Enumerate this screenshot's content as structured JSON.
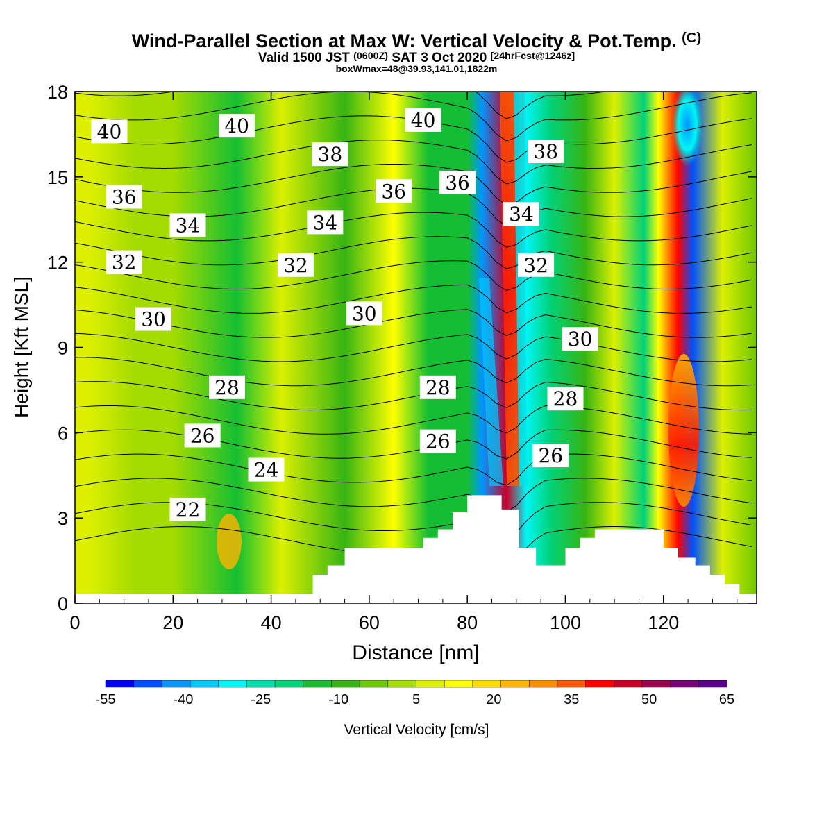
{
  "title": {
    "main": "Wind-Parallel Section at Max W: Vertical Velocity & Pot.Temp.",
    "main_mark": "(C)",
    "valid_prefix": "Valid 1500 JST",
    "valid_utc": "(0600Z)",
    "valid_date": "SAT 3 Oct 2020",
    "valid_fcst": "[24hrFcst@1246z]",
    "subtitle": "boxWmax=48@39.93,141.01,1822m"
  },
  "chart_data": {
    "type": "heatmap",
    "xlabel": "Distance [nm]",
    "ylabel": "Height [Kft MSL]",
    "xlim": [
      0,
      139
    ],
    "ylim": [
      0,
      18
    ],
    "x_ticks": [
      "0",
      "20",
      "40",
      "60",
      "80",
      "100",
      "120"
    ],
    "y_ticks": [
      "0",
      "3",
      "6",
      "9",
      "12",
      "15",
      "18"
    ],
    "colorbar": {
      "label": "Vertical Velocity [cm/s]",
      "tick_labels": [
        "-55",
        "-40",
        "-25",
        "-10",
        "5",
        "20",
        "35",
        "50",
        "65"
      ],
      "colors": [
        "#0000f5",
        "#0050ff",
        "#0096ff",
        "#00c8ff",
        "#00f5f5",
        "#00dcaa",
        "#00d278",
        "#14be32",
        "#37b414",
        "#6ec800",
        "#a5dc00",
        "#dcf000",
        "#ffff00",
        "#ffdc00",
        "#ffb400",
        "#ff8c00",
        "#ff5a00",
        "#ff0000",
        "#c80028",
        "#a00050",
        "#780078",
        "#5a008c"
      ]
    },
    "w_bands": [
      {
        "x": 3,
        "value": 5
      },
      {
        "x": 12,
        "value": 0
      },
      {
        "x": 20,
        "value": 2
      },
      {
        "x": 33,
        "value": -12
      },
      {
        "x": 42,
        "value": 8
      },
      {
        "x": 55,
        "value": -10
      },
      {
        "x": 65,
        "value": 15
      },
      {
        "x": 72,
        "value": -12
      },
      {
        "x": 80,
        "value": -15
      },
      {
        "x": 83,
        "value": -40
      },
      {
        "x": 88,
        "value": 45
      },
      {
        "x": 92,
        "value": -30
      },
      {
        "x": 97,
        "value": -20
      },
      {
        "x": 104,
        "value": -10
      },
      {
        "x": 110,
        "value": 10
      },
      {
        "x": 116,
        "value": -20
      },
      {
        "x": 119,
        "value": 15
      },
      {
        "x": 123,
        "value": 40
      },
      {
        "x": 126,
        "value": -45
      },
      {
        "x": 132,
        "value": 10
      },
      {
        "x": 139,
        "value": -5
      }
    ],
    "isentropes": {
      "unit": "C",
      "levels": [
        22,
        23,
        24,
        25,
        26,
        27,
        28,
        29,
        30,
        31,
        32,
        33,
        34,
        35,
        36,
        37,
        38,
        39,
        40,
        41
      ],
      "labels": [
        {
          "text": "40",
          "x": 7,
          "y": 16.6
        },
        {
          "text": "40",
          "x": 33,
          "y": 16.8
        },
        {
          "text": "40",
          "x": 71,
          "y": 17.0
        },
        {
          "text": "38",
          "x": 52,
          "y": 15.8
        },
        {
          "text": "38",
          "x": 96,
          "y": 15.9
        },
        {
          "text": "36",
          "x": 10,
          "y": 14.3
        },
        {
          "text": "36",
          "x": 65,
          "y": 14.5
        },
        {
          "text": "36",
          "x": 78,
          "y": 14.8
        },
        {
          "text": "34",
          "x": 23,
          "y": 13.3
        },
        {
          "text": "34",
          "x": 51,
          "y": 13.4
        },
        {
          "text": "34",
          "x": 91,
          "y": 13.7
        },
        {
          "text": "32",
          "x": 10,
          "y": 12.0
        },
        {
          "text": "32",
          "x": 45,
          "y": 11.9
        },
        {
          "text": "32",
          "x": 94,
          "y": 11.9
        },
        {
          "text": "30",
          "x": 16,
          "y": 10.0
        },
        {
          "text": "30",
          "x": 59,
          "y": 10.2
        },
        {
          "text": "30",
          "x": 103,
          "y": 9.3
        },
        {
          "text": "28",
          "x": 31,
          "y": 7.6
        },
        {
          "text": "28",
          "x": 74,
          "y": 7.6
        },
        {
          "text": "28",
          "x": 100,
          "y": 7.2
        },
        {
          "text": "26",
          "x": 26,
          "y": 5.9
        },
        {
          "text": "26",
          "x": 74,
          "y": 5.7
        },
        {
          "text": "26",
          "x": 97,
          "y": 5.2
        },
        {
          "text": "24",
          "x": 39,
          "y": 4.7
        },
        {
          "text": "22",
          "x": 23,
          "y": 3.3
        }
      ]
    },
    "terrain": [
      {
        "x": 0,
        "h": 0.33
      },
      {
        "x": 48.5,
        "h": 0.33
      },
      {
        "x": 48.5,
        "h": 1.0
      },
      {
        "x": 51.5,
        "h": 1.0
      },
      {
        "x": 51.5,
        "h": 1.33
      },
      {
        "x": 55,
        "h": 1.33
      },
      {
        "x": 55,
        "h": 1.95
      },
      {
        "x": 71,
        "h": 1.95
      },
      {
        "x": 71,
        "h": 2.3
      },
      {
        "x": 74,
        "h": 2.3
      },
      {
        "x": 74,
        "h": 2.6
      },
      {
        "x": 77,
        "h": 2.6
      },
      {
        "x": 77,
        "h": 3.2
      },
      {
        "x": 80,
        "h": 3.2
      },
      {
        "x": 80,
        "h": 3.8
      },
      {
        "x": 87,
        "h": 3.8
      },
      {
        "x": 87,
        "h": 3.3
      },
      {
        "x": 90.5,
        "h": 3.3
      },
      {
        "x": 90.5,
        "h": 1.95
      },
      {
        "x": 94,
        "h": 1.95
      },
      {
        "x": 94,
        "h": 1.33
      },
      {
        "x": 100,
        "h": 1.33
      },
      {
        "x": 100,
        "h": 1.95
      },
      {
        "x": 103,
        "h": 1.95
      },
      {
        "x": 103,
        "h": 2.3
      },
      {
        "x": 106,
        "h": 2.3
      },
      {
        "x": 106,
        "h": 2.6
      },
      {
        "x": 120,
        "h": 2.6
      },
      {
        "x": 120,
        "h": 1.95
      },
      {
        "x": 123,
        "h": 1.95
      },
      {
        "x": 123,
        "h": 1.6
      },
      {
        "x": 126.5,
        "h": 1.6
      },
      {
        "x": 126.5,
        "h": 1.33
      },
      {
        "x": 129.5,
        "h": 1.33
      },
      {
        "x": 129.5,
        "h": 1.0
      },
      {
        "x": 132.5,
        "h": 1.0
      },
      {
        "x": 132.5,
        "h": 0.66
      },
      {
        "x": 135.5,
        "h": 0.66
      },
      {
        "x": 135.5,
        "h": 0.33
      },
      {
        "x": 139,
        "h": 0.33
      }
    ]
  }
}
